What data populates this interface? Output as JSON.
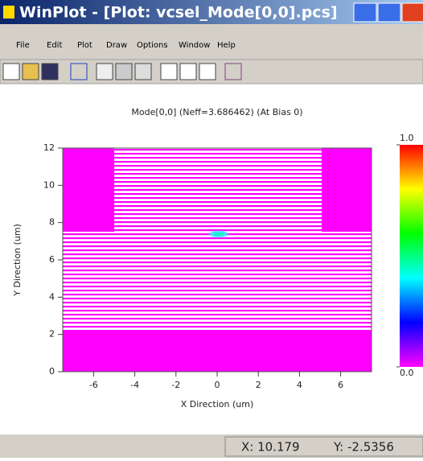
{
  "window": {
    "title": "WinPlot - [Plot: vcsel_Mode[0,0].pcs]",
    "menu": [
      "File",
      "Edit",
      "Plot",
      "Draw",
      "Options",
      "Window",
      "Help"
    ]
  },
  "chart_data": {
    "type": "heatmap",
    "title": "Mode[0,0] (Neff=3.686462) (At Bias 0)",
    "x_label": "X Direction (um)",
    "y_label": "Y Direction (um)",
    "xlim": [
      -7.5,
      7.5
    ],
    "ylim": [
      0,
      12
    ],
    "xticks": [
      -6,
      -4,
      -2,
      0,
      2,
      4,
      6
    ],
    "yticks": [
      0,
      2,
      4,
      6,
      8,
      10,
      12
    ],
    "colorbar": {
      "lim": [
        0,
        1
      ],
      "ticks": [
        {
          "value": 0,
          "label": "0.0"
        },
        {
          "value": 1,
          "label": "1.0"
        }
      ]
    }
  },
  "status": {
    "x": "X: 10.179",
    "y": "Y: -2.5356"
  }
}
